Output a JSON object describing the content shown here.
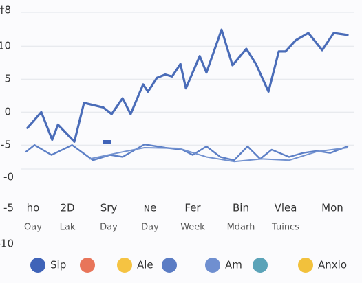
{
  "chart_data": {
    "type": "line",
    "xlim": [
      0,
      100
    ],
    "ylim": [
      -13,
      17
    ],
    "yticks": [
      10,
      5,
      0,
      -5
    ],
    "grid": true,
    "y_extra_labels": [
      "†8",
      "-0",
      "-5",
      "-10"
    ],
    "x_labels": [
      "ho",
      "2D",
      "Sry",
      "ɴe",
      "Fer",
      "Bin",
      "Vlea",
      "Mon"
    ],
    "x_sublabels": [
      "Oay",
      "Lak",
      "Day",
      "Day",
      "Week",
      "Mdarh",
      "Tuincs"
    ],
    "series": [
      {
        "color": "#4a6cb8",
        "width": 3.2,
        "x": [
          0.4,
          4.7,
          8.1,
          9.9,
          15,
          18,
          24,
          26.6,
          30,
          32.5,
          36.4,
          37.9,
          40.7,
          43.3,
          45.4,
          48,
          49.7,
          54,
          56.1,
          60.8,
          64.2,
          68.5,
          71.5,
          75.4,
          78.6,
          80.7,
          83.9,
          87.8,
          92.1,
          95.7,
          100
        ],
        "values": [
          -2.4,
          0,
          -4.2,
          -1.9,
          -4.5,
          1.4,
          0.7,
          -0.3,
          2.1,
          -0.3,
          4.2,
          3.1,
          5.2,
          5.7,
          5.4,
          7.3,
          3.6,
          8.5,
          6,
          12.5,
          7.1,
          9.6,
          7.3,
          3.1,
          9.2,
          9.2,
          10.9,
          12,
          9.4,
          12,
          11.7
        ]
      },
      {
        "color": "#5c7fc6",
        "width": 2.4,
        "x": [
          0,
          2.6,
          7.9,
          14.3,
          20.8,
          26.1,
          30,
          36.8,
          43.3,
          48.6,
          51.8,
          56.1,
          60.4,
          64.7,
          68.9,
          72.8,
          76.4,
          81.8,
          86.1,
          90.4,
          94.6,
          100
        ],
        "values": [
          -6,
          -5,
          -6.5,
          -5,
          -7.3,
          -6.5,
          -6.8,
          -4.9,
          -5.4,
          -5.7,
          -6.5,
          -5.2,
          -6.8,
          -7.3,
          -5.2,
          -7.1,
          -5.7,
          -6.8,
          -6.2,
          -5.9,
          -6.2,
          -5.2
        ]
      },
      {
        "color": "#7392d0",
        "width": 2,
        "x": [
          19.7,
          30.4,
          36.8,
          47.5,
          56.1,
          64.7,
          73.2,
          81.8,
          90.4,
          100
        ],
        "values": [
          -7.1,
          -6,
          -5.4,
          -5.5,
          -6.8,
          -7.5,
          -7.1,
          -7.3,
          -6,
          -5.4
        ]
      }
    ],
    "legend": [
      {
        "color": "#3f63b8",
        "label": "Sip"
      },
      {
        "color": "#e8755a"
      },
      {
        "color": "#f5c342",
        "label": "Ale"
      },
      {
        "color": "#5b7cc4"
      },
      {
        "color": "#6f8fd0",
        "label": "Am"
      },
      {
        "color": "#5ba3b8"
      },
      {
        "color": "#f2c13c",
        "label": "Anxio"
      }
    ]
  }
}
